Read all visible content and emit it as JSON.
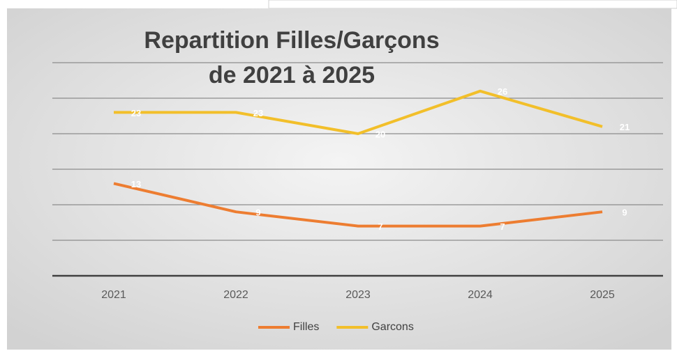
{
  "chart_data": {
    "type": "line",
    "title": [
      "Repartition Filles/Garçons",
      "de 2021 à 2025"
    ],
    "categories": [
      "2021",
      "2022",
      "2023",
      "2024",
      "2025"
    ],
    "series": [
      {
        "name": "Filles",
        "color": "#ed7d31",
        "values": [
          13,
          9,
          7,
          7,
          9
        ]
      },
      {
        "name": "Garcons",
        "color": "#f2bf2a",
        "values": [
          23,
          23,
          20,
          26,
          21
        ]
      }
    ],
    "ylim": [
      0,
      30
    ],
    "yticks": [
      0,
      5,
      10,
      15,
      20,
      25,
      30
    ],
    "grid": true,
    "legend": "bottom"
  }
}
